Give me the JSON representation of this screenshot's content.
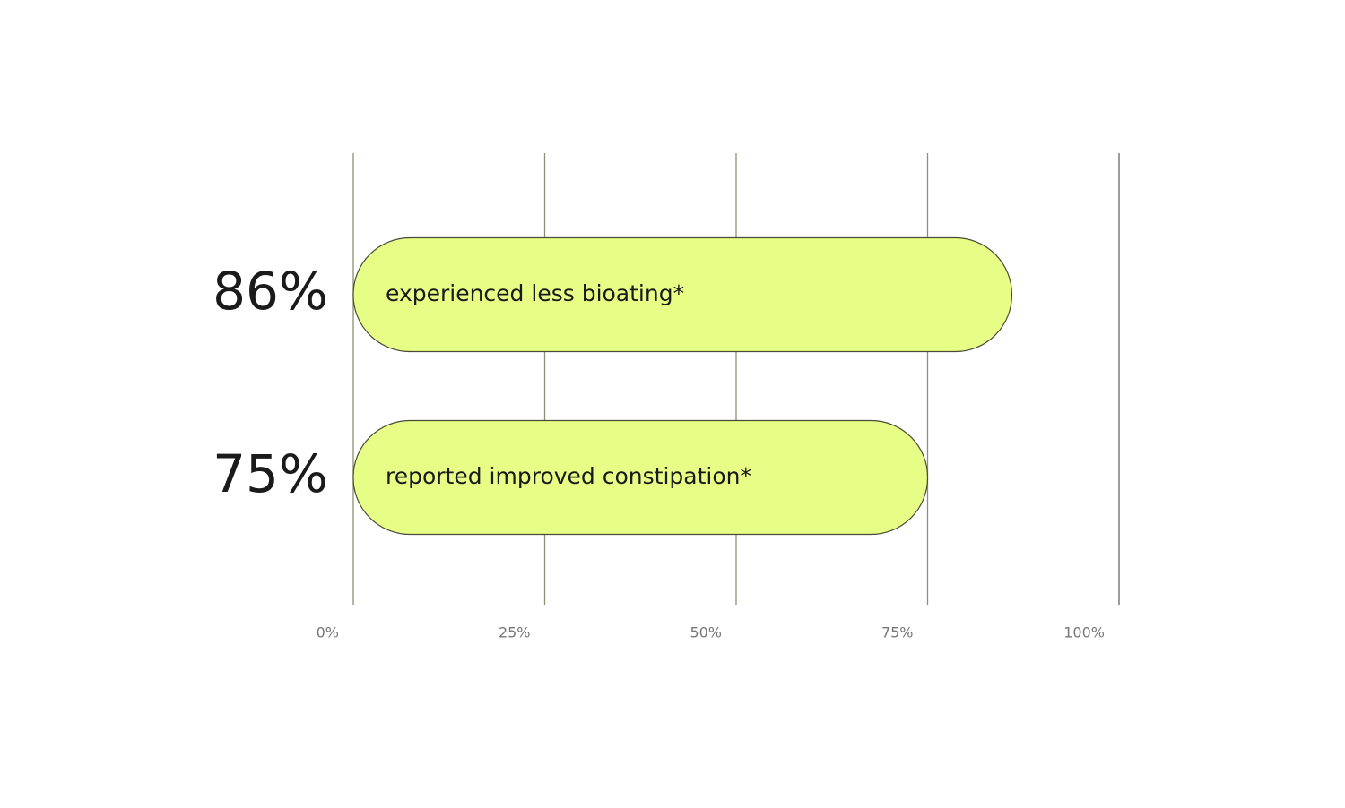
{
  "chart_data": {
    "type": "bar",
    "orientation": "horizontal",
    "categories": [
      "experienced less bioating*",
      "reported improved constipation*"
    ],
    "values": [
      86,
      75
    ],
    "value_labels": [
      "86%",
      "75%"
    ],
    "color": "#e6fd86",
    "xlim": [
      0,
      100
    ],
    "xticks": [
      {
        "value": 0,
        "label": "0%"
      },
      {
        "value": 25,
        "label": "25%"
      },
      {
        "value": 50,
        "label": "50%"
      },
      {
        "value": 75,
        "label": "75%"
      },
      {
        "value": 100,
        "label": "100%"
      }
    ],
    "grid": true
  }
}
